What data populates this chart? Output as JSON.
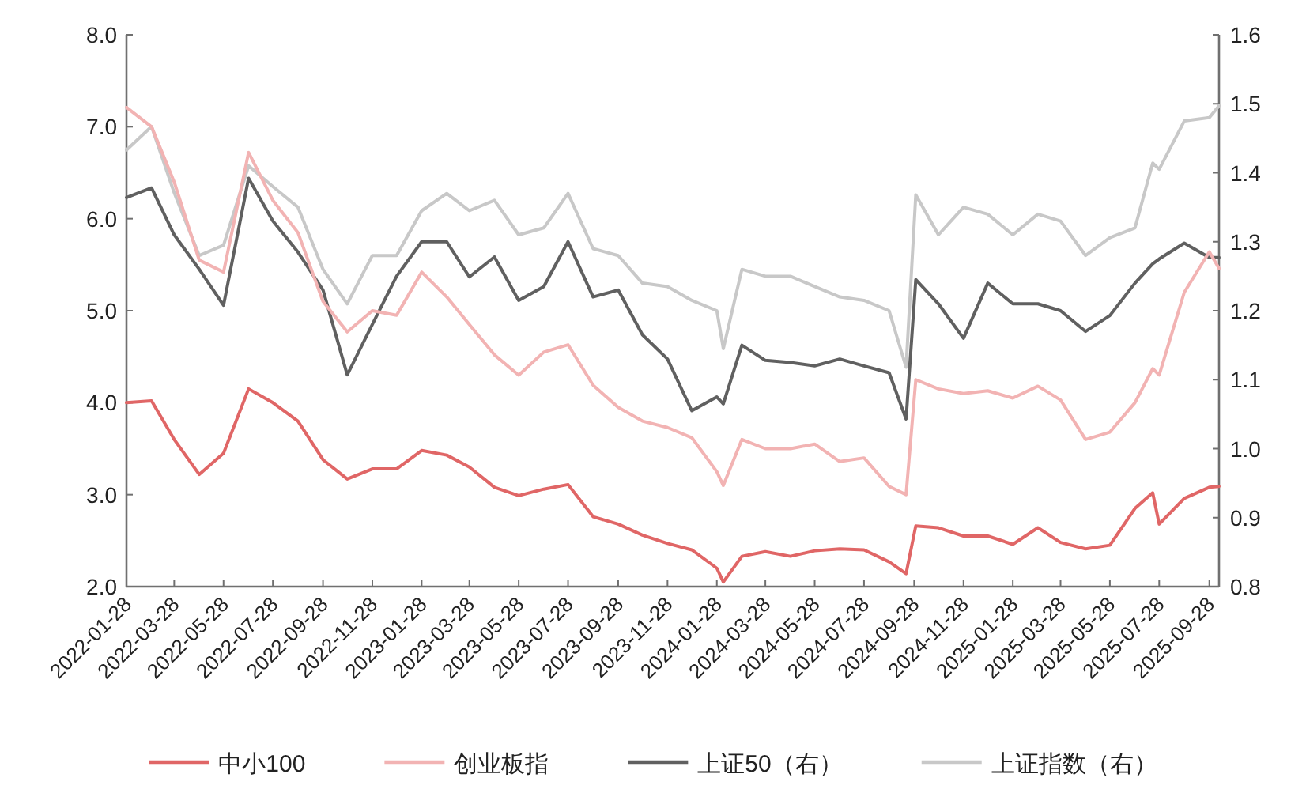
{
  "chart_data": {
    "type": "line",
    "x": [
      "2022-01-28",
      "2022-02-28",
      "2022-03-28",
      "2022-04-28",
      "2022-05-28",
      "2022-06-28",
      "2022-07-28",
      "2022-08-28",
      "2022-09-28",
      "2022-10-28",
      "2022-11-28",
      "2022-12-28",
      "2023-01-28",
      "2023-02-28",
      "2023-03-28",
      "2023-04-28",
      "2023-05-28",
      "2023-06-28",
      "2023-07-28",
      "2023-08-28",
      "2023-09-28",
      "2023-10-28",
      "2023-11-28",
      "2023-12-28",
      "2024-01-28",
      "2024-02-05",
      "2024-02-28",
      "2024-03-28",
      "2024-04-28",
      "2024-05-28",
      "2024-06-28",
      "2024-07-28",
      "2024-08-28",
      "2024-09-18",
      "2024-09-30",
      "2024-10-28",
      "2024-11-28",
      "2024-12-28",
      "2025-01-28",
      "2025-02-28",
      "2025-03-28",
      "2025-04-28",
      "2025-05-28",
      "2025-06-28",
      "2025-07-20",
      "2025-07-28",
      "2025-08-28",
      "2025-09-28",
      "2025-10-10"
    ],
    "series": [
      {
        "name": "中小100",
        "color": "#e06666",
        "values": [
          4.0,
          4.02,
          3.6,
          3.22,
          3.45,
          4.15,
          4.0,
          3.8,
          3.38,
          3.17,
          3.28,
          3.28,
          3.48,
          3.43,
          3.3,
          3.08,
          2.99,
          3.06,
          3.11,
          2.76,
          2.68,
          2.56,
          2.47,
          2.4,
          2.2,
          2.05,
          2.33,
          2.38,
          2.33,
          2.39,
          2.41,
          2.4,
          2.27,
          2.14,
          2.66,
          2.64,
          2.55,
          2.55,
          2.46,
          2.64,
          2.48,
          2.41,
          2.45,
          2.85,
          3.02,
          2.68,
          2.96,
          3.08,
          3.09
        ]
      },
      {
        "name": "创业板指",
        "color": "#f2b3b3",
        "values": [
          7.21,
          7.0,
          6.4,
          5.55,
          5.42,
          6.72,
          6.2,
          5.85,
          5.1,
          4.77,
          5.0,
          4.95,
          5.42,
          5.15,
          4.85,
          4.52,
          4.3,
          4.55,
          4.63,
          4.19,
          3.95,
          3.8,
          3.73,
          3.62,
          3.25,
          3.1,
          3.6,
          3.5,
          3.5,
          3.55,
          3.36,
          3.4,
          3.09,
          3.0,
          4.25,
          4.15,
          4.1,
          4.13,
          4.05,
          4.18,
          4.03,
          3.6,
          3.68,
          4.0,
          4.37,
          4.3,
          5.2,
          5.64,
          5.46
        ]
      },
      {
        "name": "上证50（右）",
        "color": "#606060",
        "axis": "y2",
        "values": [
          1.364,
          1.378,
          1.31,
          1.26,
          1.208,
          1.392,
          1.33,
          1.285,
          1.23,
          1.107,
          1.18,
          1.25,
          1.3,
          1.3,
          1.249,
          1.278,
          1.215,
          1.235,
          1.3,
          1.22,
          1.23,
          1.165,
          1.13,
          1.055,
          1.075,
          1.065,
          1.15,
          1.128,
          1.125,
          1.12,
          1.13,
          1.12,
          1.11,
          1.043,
          1.245,
          1.21,
          1.16,
          1.24,
          1.21,
          1.21,
          1.2,
          1.17,
          1.193,
          1.24,
          1.268,
          1.275,
          1.298,
          1.277,
          1.277
        ]
      },
      {
        "name": "上证指数（右）",
        "color": "#c8c8c8",
        "axis": "y2",
        "values": [
          1.433,
          1.467,
          1.371,
          1.28,
          1.295,
          1.41,
          1.38,
          1.35,
          1.26,
          1.21,
          1.28,
          1.28,
          1.345,
          1.37,
          1.345,
          1.36,
          1.31,
          1.32,
          1.37,
          1.29,
          1.28,
          1.24,
          1.235,
          1.215,
          1.2,
          1.145,
          1.26,
          1.25,
          1.25,
          1.235,
          1.22,
          1.215,
          1.2,
          1.118,
          1.368,
          1.31,
          1.35,
          1.34,
          1.31,
          1.34,
          1.33,
          1.28,
          1.306,
          1.32,
          1.414,
          1.405,
          1.475,
          1.48,
          1.497
        ]
      }
    ],
    "xlim": [
      "2022-01-28",
      "2025-10-10"
    ],
    "xticks": [
      "2022-01-28",
      "2022-03-28",
      "2022-05-28",
      "2022-07-28",
      "2022-09-28",
      "2022-11-28",
      "2023-01-28",
      "2023-03-28",
      "2023-05-28",
      "2023-07-28",
      "2023-09-28",
      "2023-11-28",
      "2024-01-28",
      "2024-03-28",
      "2024-05-28",
      "2024-07-28",
      "2024-09-28",
      "2024-11-28",
      "2025-01-28",
      "2025-03-28",
      "2025-05-28",
      "2025-07-28",
      "2025-09-28"
    ],
    "ylim": [
      2,
      8
    ],
    "yticks": [
      {
        "value": 2,
        "label": "2.0"
      },
      {
        "value": 3,
        "label": "3.0"
      },
      {
        "value": 4,
        "label": "4.0"
      },
      {
        "value": 5,
        "label": "5.0"
      },
      {
        "value": 6,
        "label": "6.0"
      },
      {
        "value": 7,
        "label": "7.0"
      },
      {
        "value": 8,
        "label": "8.0"
      }
    ],
    "y2lim": [
      0.8,
      1.6
    ],
    "y2ticks": [
      {
        "value": 0.8,
        "label": "0.8"
      },
      {
        "value": 0.9,
        "label": "0.9"
      },
      {
        "value": 1.0,
        "label": "1.0"
      },
      {
        "value": 1.1,
        "label": "1.1"
      },
      {
        "value": 1.2,
        "label": "1.2"
      },
      {
        "value": 1.3,
        "label": "1.3"
      },
      {
        "value": 1.4,
        "label": "1.4"
      },
      {
        "value": 1.5,
        "label": "1.5"
      },
      {
        "value": 1.6,
        "label": "1.6"
      }
    ],
    "legend": "bottom"
  }
}
